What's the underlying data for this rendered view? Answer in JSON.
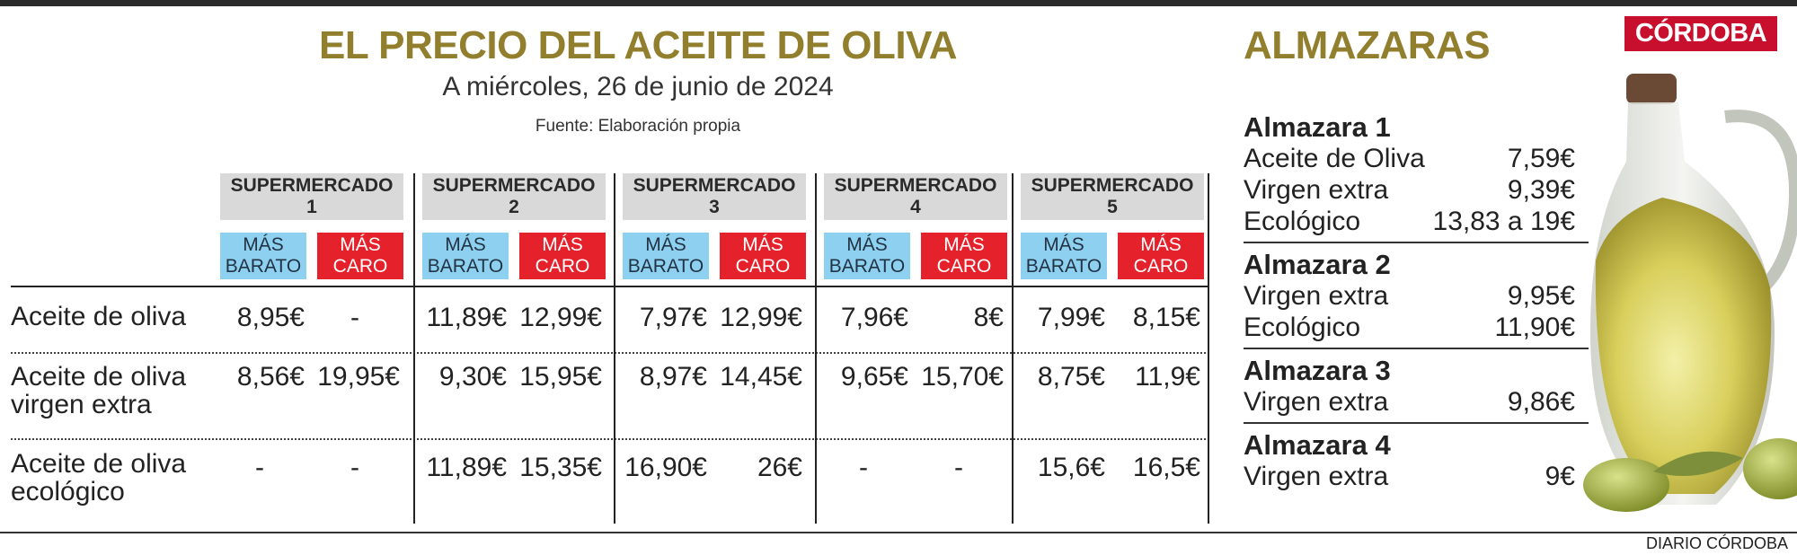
{
  "header": {
    "title": "EL PRECIO DEL ACEITE DE OLIVA",
    "subtitle": "A miércoles, 26 de junio de 2024",
    "source": "Fuente: Elaboración propia",
    "title_color": "#927f2e"
  },
  "logo": "CÓRDOBA",
  "footer": "DIARIO CÓRDOBA",
  "tags": {
    "cheap": "MÁS\nBARATO",
    "expensive": "MÁS\nCARO"
  },
  "supermarkets": [
    {
      "name": "SUPERMERCADO\n1"
    },
    {
      "name": "SUPERMERCADO\n2"
    },
    {
      "name": "SUPERMERCADO\n3"
    },
    {
      "name": "SUPERMERCADO\n4"
    },
    {
      "name": "SUPERMERCADO\n5"
    }
  ],
  "rows": [
    {
      "label": "Aceite de oliva",
      "values": [
        [
          "8,95€",
          "-"
        ],
        [
          "11,89€",
          "12,99€"
        ],
        [
          "7,97€",
          "12,99€"
        ],
        [
          "7,96€",
          "8€"
        ],
        [
          "7,99€",
          "8,15€"
        ]
      ]
    },
    {
      "label": "Aceite de oliva\nvirgen extra",
      "values": [
        [
          "8,56€",
          "19,95€"
        ],
        [
          "9,30€",
          "15,95€"
        ],
        [
          "8,97€",
          "14,45€"
        ],
        [
          "9,65€",
          "15,70€"
        ],
        [
          "8,75€",
          "11,9€"
        ]
      ]
    },
    {
      "label": "Aceite de oliva\necológico",
      "values": [
        [
          "-",
          "-"
        ],
        [
          "11,89€",
          "15,35€"
        ],
        [
          "16,90€",
          "26€"
        ],
        [
          "-",
          "-"
        ],
        [
          "15,6€",
          "16,5€"
        ]
      ]
    }
  ],
  "almazaras": {
    "title": "ALMAZARAS",
    "items": [
      {
        "name": "Almazara 1",
        "prices": [
          {
            "label": "Aceite de Oliva",
            "value": "7,59€"
          },
          {
            "label": "Virgen extra",
            "value": "9,39€"
          },
          {
            "label": "Ecológico",
            "value": "13,83 a 19€"
          }
        ]
      },
      {
        "name": "Almazara 2",
        "prices": [
          {
            "label": "Virgen extra",
            "value": "9,95€"
          },
          {
            "label": "Ecológico",
            "value": "11,90€"
          }
        ]
      },
      {
        "name": "Almazara 3",
        "prices": [
          {
            "label": "Virgen extra",
            "value": "9,86€"
          }
        ]
      },
      {
        "name": "Almazara 4",
        "prices": [
          {
            "label": "Virgen extra",
            "value": "9€"
          }
        ]
      }
    ]
  },
  "colors": {
    "accent_gold": "#927f2e",
    "cheap_tag": "#8ed0ef",
    "expensive_tag": "#e5222c",
    "header_grey": "#d9d9d9",
    "logo_red": "#c8102e"
  },
  "image": "olive-oil-bottle-with-olives"
}
